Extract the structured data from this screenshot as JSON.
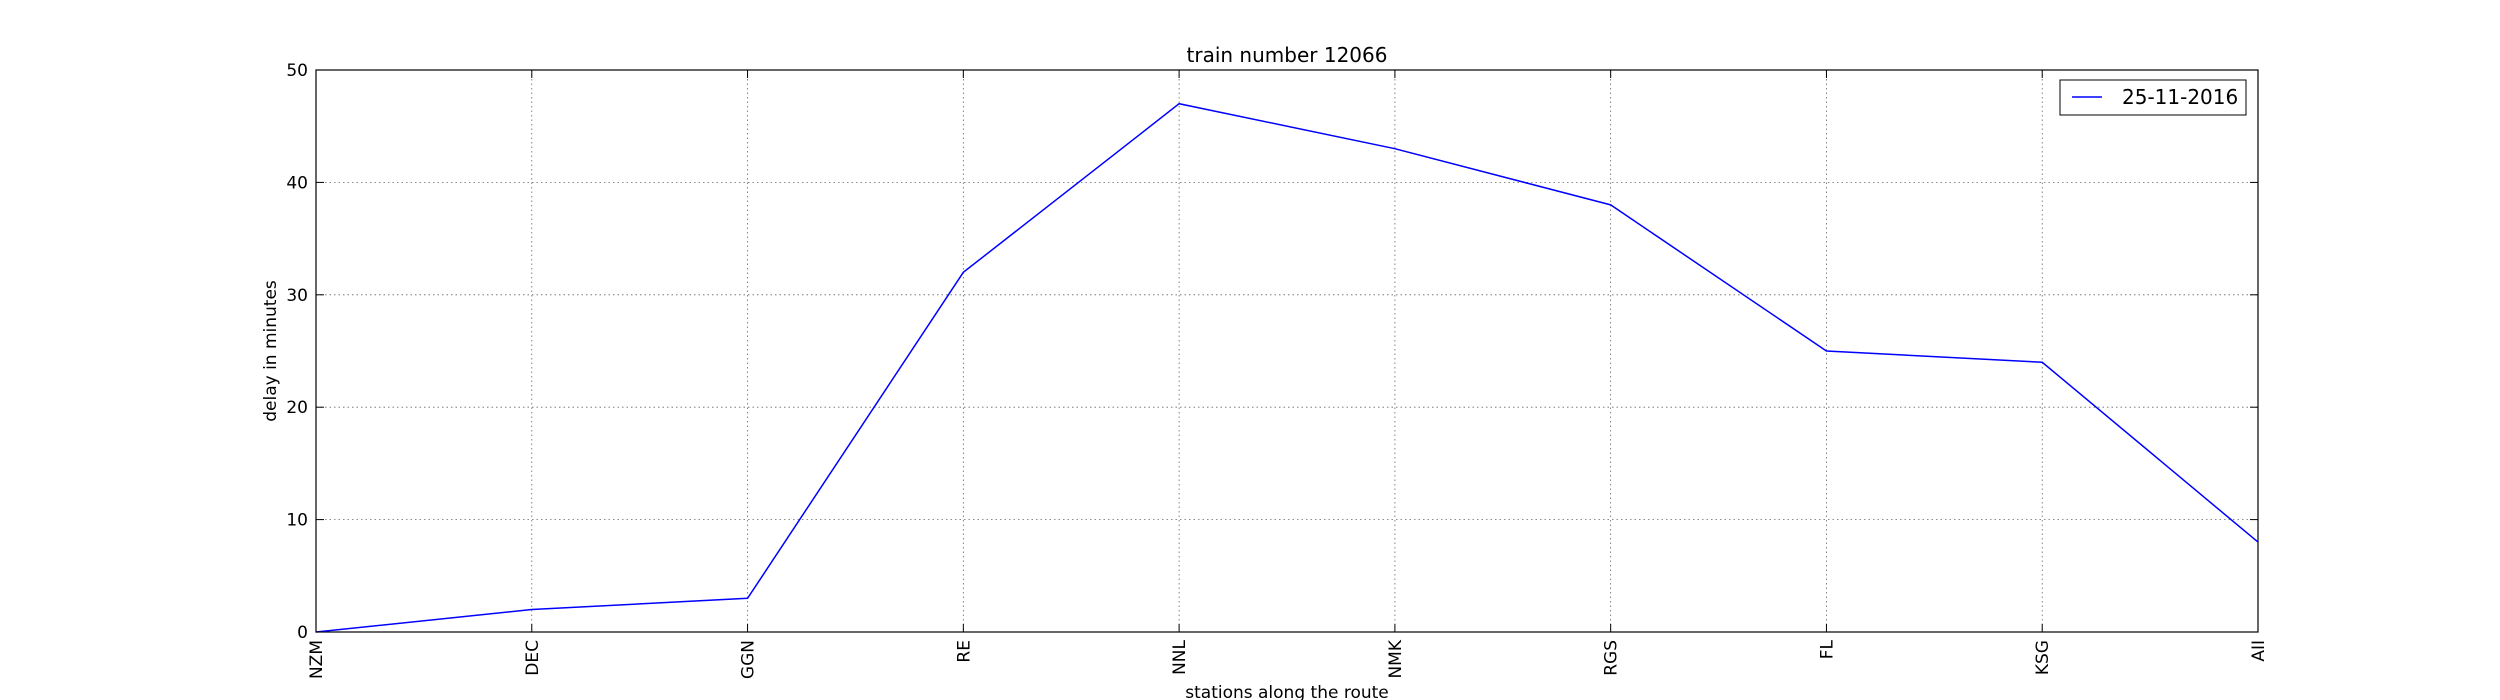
{
  "chart_data": {
    "type": "line",
    "title": "train number 12066",
    "xlabel": "stations along the route",
    "ylabel": "delay in minutes",
    "categories": [
      "NZM",
      "DEC",
      "GGN",
      "RE",
      "NNL",
      "NMK",
      "RGS",
      "FL",
      "KSG",
      "AII"
    ],
    "series": [
      {
        "name": "25-11-2016",
        "values": [
          0,
          2,
          3,
          32,
          47,
          43,
          38,
          25,
          24,
          8
        ],
        "color": "#0000ff"
      }
    ],
    "ylim": [
      0,
      50
    ],
    "yticks": [
      0,
      10,
      20,
      30,
      40,
      50
    ],
    "grid": true,
    "grid_style": "dotted",
    "legend_placement": "top-right",
    "x_tick_rotation": "vertical"
  }
}
